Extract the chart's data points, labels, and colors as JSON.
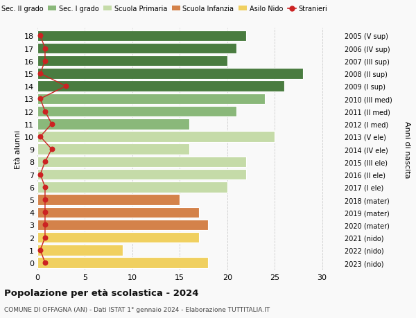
{
  "ages": [
    18,
    17,
    16,
    15,
    14,
    13,
    12,
    11,
    10,
    9,
    8,
    7,
    6,
    5,
    4,
    3,
    2,
    1,
    0
  ],
  "right_labels": [
    "2005 (V sup)",
    "2006 (IV sup)",
    "2007 (III sup)",
    "2008 (II sup)",
    "2009 (I sup)",
    "2010 (III med)",
    "2011 (II med)",
    "2012 (I med)",
    "2013 (V ele)",
    "2014 (IV ele)",
    "2015 (III ele)",
    "2016 (II ele)",
    "2017 (I ele)",
    "2018 (mater)",
    "2019 (mater)",
    "2020 (mater)",
    "2021 (nido)",
    "2022 (nido)",
    "2023 (nido)"
  ],
  "bar_values": [
    22,
    21,
    20,
    28,
    26,
    24,
    21,
    16,
    25,
    16,
    22,
    22,
    20,
    15,
    17,
    18,
    17,
    9,
    18
  ],
  "bar_colors": [
    "#4a7c40",
    "#4a7c40",
    "#4a7c40",
    "#4a7c40",
    "#4a7c40",
    "#8ab87a",
    "#8ab87a",
    "#8ab87a",
    "#c5dba8",
    "#c5dba8",
    "#c5dba8",
    "#c5dba8",
    "#c5dba8",
    "#d4824a",
    "#d4824a",
    "#d4824a",
    "#f0d060",
    "#f0d060",
    "#f0d060"
  ],
  "stranieri_values": [
    0.3,
    0.8,
    0.8,
    0.3,
    3.0,
    0.3,
    0.8,
    1.5,
    0.3,
    1.5,
    0.8,
    0.3,
    0.8,
    0.8,
    0.8,
    0.8,
    0.8,
    0.3,
    0.8
  ],
  "legend_labels": [
    "Sec. II grado",
    "Sec. I grado",
    "Scuola Primaria",
    "Scuola Infanzia",
    "Asilo Nido",
    "Stranieri"
  ],
  "legend_colors": [
    "#4a7c40",
    "#8ab87a",
    "#c5dba8",
    "#d4824a",
    "#f0d060",
    "#cc2222"
  ],
  "title": "Popolazione per età scolastica - 2024",
  "subtitle": "COMUNE DI OFFAGNA (AN) - Dati ISTAT 1° gennaio 2024 - Elaborazione TUTTITALIA.IT",
  "ylabel_left": "Età alunni",
  "ylabel_right": "Anni di nascita",
  "xlim": [
    0,
    32
  ],
  "xticks": [
    0,
    5,
    10,
    15,
    20,
    25,
    30
  ],
  "background_color": "#f9f9f9",
  "bar_height": 0.85,
  "stranieri_color": "#cc2222"
}
